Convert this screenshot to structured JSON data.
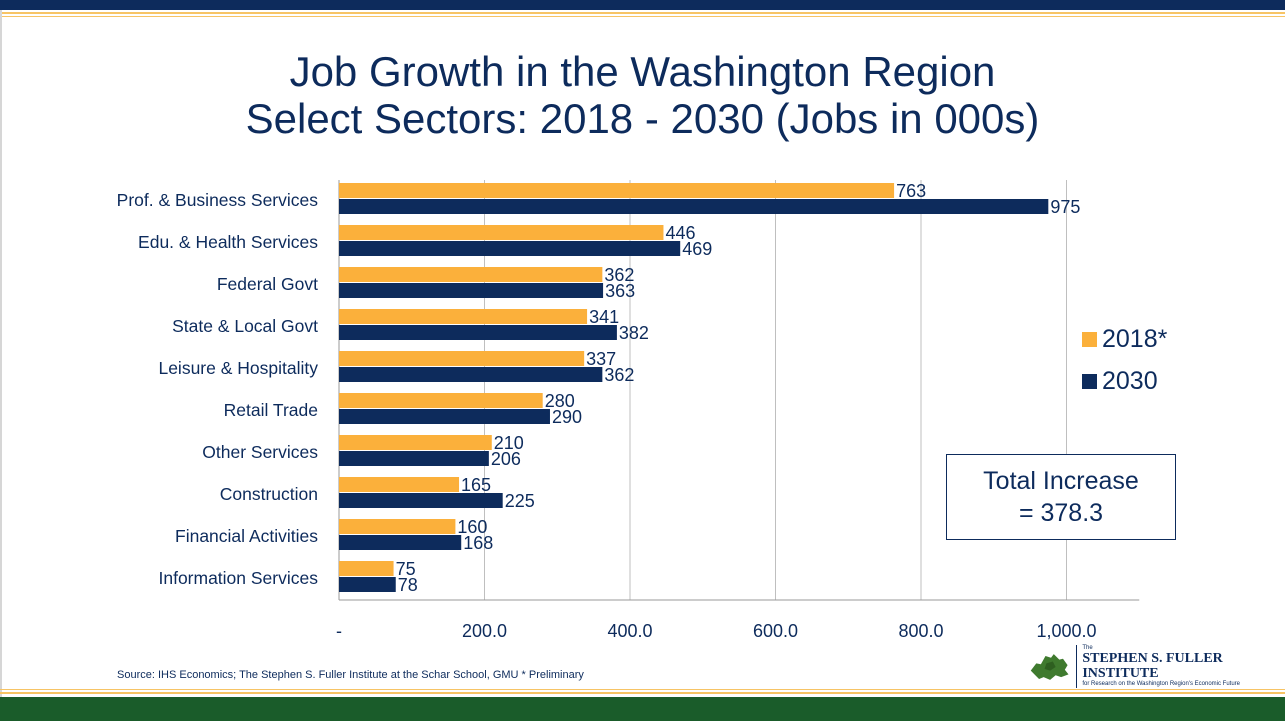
{
  "title": {
    "line1": "Job Growth in the Washington Region",
    "line2": "Select Sectors: 2018 - 2030 (Jobs in 000s)"
  },
  "chart_data": {
    "type": "bar",
    "orientation": "horizontal",
    "title": "Job Growth in the Washington Region Select Sectors: 2018 - 2030 (Jobs in 000s)",
    "categories": [
      "Prof. & Business Services",
      "Edu. & Health Services",
      "Federal Govt",
      "State & Local Govt",
      "Leisure & Hospitality",
      "Retail Trade",
      "Other Services",
      "Construction",
      "Financial Activities",
      "Information Services"
    ],
    "series": [
      {
        "name": "2018*",
        "color": "#fbb03b",
        "values": [
          763,
          446,
          362,
          341,
          337,
          280,
          210,
          165,
          160,
          75
        ]
      },
      {
        "name": "2030",
        "color": "#0d2b5c",
        "values": [
          975,
          469,
          363,
          382,
          362,
          290,
          206,
          225,
          168,
          78
        ]
      }
    ],
    "xlim": [
      0,
      1100
    ],
    "xticks": [
      0,
      200,
      400,
      600,
      800,
      1000
    ],
    "xtick_labels": [
      "-",
      "200.0",
      "400.0",
      "600.0",
      "800.0",
      "1,000.0"
    ],
    "grid": true,
    "legend_position": "right"
  },
  "legend": {
    "items": [
      {
        "label": "2018*",
        "color": "#fbb03b"
      },
      {
        "label": "2030",
        "color": "#0d2b5c"
      }
    ]
  },
  "total_box": {
    "line1": "Total Increase",
    "line2": "= 378.3"
  },
  "source": "Source: IHS Economics; The Stephen S. Fuller Institute at the Schar School, GMU   * Preliminary",
  "logo": {
    "small": "The",
    "name": "STEPHEN S. FULLER INSTITUTE",
    "sub": "for Research on the Washington Region's Economic Future"
  },
  "colors": {
    "navy": "#0d2b5c",
    "gold": "#fbb03b",
    "green": "#1a5c2a"
  }
}
